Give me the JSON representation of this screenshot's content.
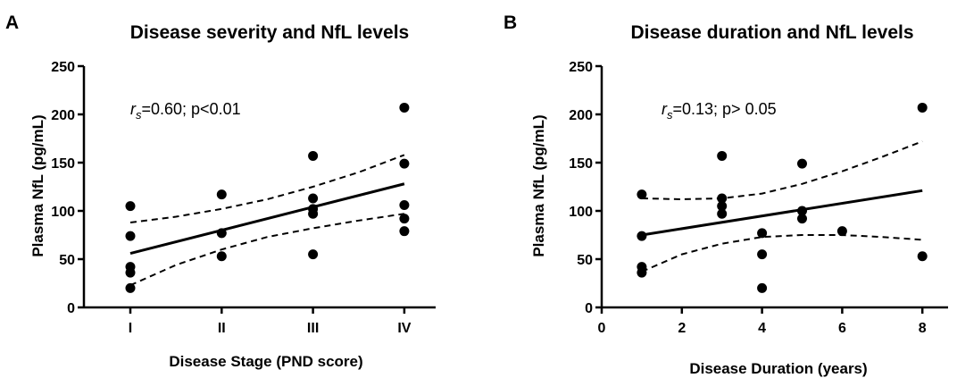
{
  "chart_data": [
    {
      "type": "scatter",
      "panel": "A",
      "title": "Disease severity and NfL levels",
      "xlabel": "Disease Stage (PND score)",
      "ylabel": "Plasma NfL (pg/mL)",
      "categories": [
        "I",
        "II",
        "III",
        "IV"
      ],
      "ylim": [
        0,
        250
      ],
      "yticks": [
        0,
        50,
        100,
        150,
        200,
        250
      ],
      "points": [
        {
          "x": 1,
          "y": 105
        },
        {
          "x": 1,
          "y": 74
        },
        {
          "x": 1,
          "y": 42
        },
        {
          "x": 1,
          "y": 36
        },
        {
          "x": 1,
          "y": 20
        },
        {
          "x": 2,
          "y": 117
        },
        {
          "x": 2,
          "y": 77
        },
        {
          "x": 2,
          "y": 53
        },
        {
          "x": 3,
          "y": 157
        },
        {
          "x": 3,
          "y": 113
        },
        {
          "x": 3,
          "y": 102
        },
        {
          "x": 3,
          "y": 97
        },
        {
          "x": 3,
          "y": 55
        },
        {
          "x": 4,
          "y": 207
        },
        {
          "x": 4,
          "y": 149
        },
        {
          "x": 4,
          "y": 106
        },
        {
          "x": 4,
          "y": 92
        },
        {
          "x": 4,
          "y": 79
        }
      ],
      "fit_line": {
        "x": [
          1,
          4
        ],
        "y": [
          56,
          128
        ]
      },
      "ci_upper": {
        "x": [
          1,
          1.5,
          2,
          2.5,
          3,
          3.5,
          4
        ],
        "y": [
          88,
          94,
          102,
          112,
          125,
          140,
          158
        ]
      },
      "ci_lower": {
        "x": [
          1,
          1.5,
          2,
          2.5,
          3,
          3.5,
          4
        ],
        "y": [
          23,
          44,
          60,
          73,
          82,
          90,
          97
        ]
      },
      "annotation": {
        "r_symbol": "r",
        "r_sub": "s",
        "text": "=0.60; p<0.01"
      },
      "grid": false
    },
    {
      "type": "scatter",
      "panel": "B",
      "title": "Disease duration and NfL levels",
      "xlabel": "Disease Duration (years)",
      "ylabel": "Plasma NfL (pg/mL)",
      "xlim": [
        0,
        8
      ],
      "xticks": [
        0,
        2,
        4,
        6,
        8
      ],
      "ylim": [
        0,
        250
      ],
      "yticks": [
        0,
        50,
        100,
        150,
        200,
        250
      ],
      "points": [
        {
          "x": 1,
          "y": 117
        },
        {
          "x": 1,
          "y": 74
        },
        {
          "x": 1,
          "y": 42
        },
        {
          "x": 1,
          "y": 36
        },
        {
          "x": 3,
          "y": 157
        },
        {
          "x": 3,
          "y": 113
        },
        {
          "x": 3,
          "y": 105
        },
        {
          "x": 3,
          "y": 97
        },
        {
          "x": 4,
          "y": 77
        },
        {
          "x": 4,
          "y": 55
        },
        {
          "x": 4,
          "y": 20
        },
        {
          "x": 5,
          "y": 149
        },
        {
          "x": 5,
          "y": 100
        },
        {
          "x": 5,
          "y": 92
        },
        {
          "x": 6,
          "y": 79
        },
        {
          "x": 8,
          "y": 207
        },
        {
          "x": 8,
          "y": 53
        }
      ],
      "fit_line": {
        "x": [
          1,
          8
        ],
        "y": [
          75,
          121
        ]
      },
      "ci_upper": {
        "x": [
          1,
          2,
          3,
          4,
          5,
          6,
          7,
          8
        ],
        "y": [
          113,
          112,
          113,
          118,
          128,
          141,
          156,
          172
        ]
      },
      "ci_lower": {
        "x": [
          1,
          2,
          3,
          4,
          5,
          6,
          7,
          8
        ],
        "y": [
          37,
          55,
          66,
          73,
          75,
          75,
          73,
          70
        ]
      },
      "annotation": {
        "r_symbol": "r",
        "r_sub": "s",
        "text": "=0.13; p> 0.05"
      },
      "grid": false
    }
  ]
}
